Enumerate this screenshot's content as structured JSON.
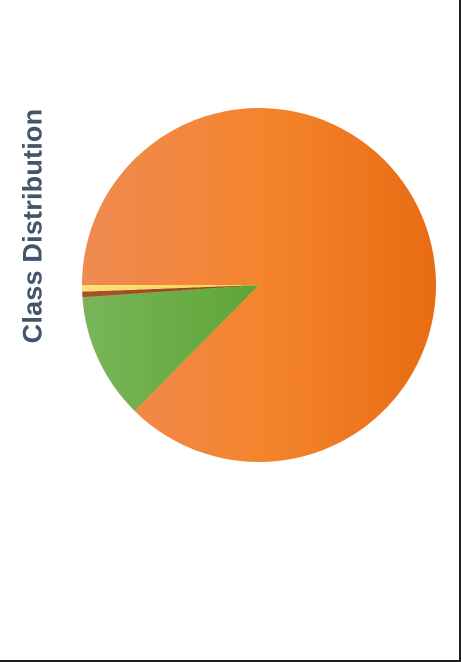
{
  "chart_data": {
    "type": "pie",
    "title": "Class Distribution",
    "slices": [
      {
        "value": 87.4,
        "color": "#ed7d31"
      },
      {
        "value": 11.5,
        "color": "#70ad47"
      },
      {
        "value": 0.5,
        "color": "#9e480e"
      },
      {
        "value": 0.6,
        "color": "#ffd966"
      }
    ],
    "legend": "none",
    "data_labels": "none"
  }
}
